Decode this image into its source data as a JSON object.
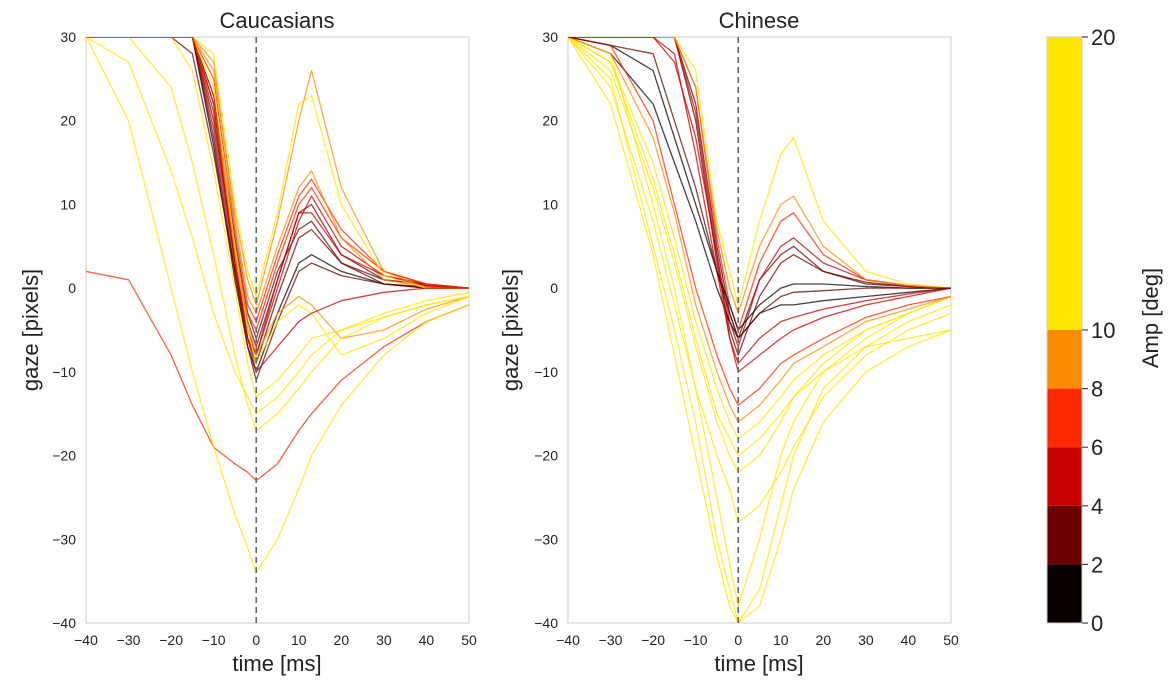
{
  "chart_data": [
    {
      "type": "line",
      "title": "Caucasians",
      "xlabel": "time [ms]",
      "ylabel": "gaze [pixels]",
      "xlim": [
        -40,
        50
      ],
      "ylim": [
        -40,
        30
      ],
      "xticks": [
        "−40",
        "−30",
        "−20",
        "−10",
        "0",
        "10",
        "20",
        "30",
        "40",
        "50"
      ],
      "yticks": [
        "30",
        "20",
        "10",
        "0",
        "−10",
        "−20",
        "−30",
        "−40"
      ],
      "grid": false,
      "vline_x": 0,
      "x": [
        -40,
        -30,
        -20,
        -15,
        -10,
        -5,
        -2,
        0,
        5,
        10,
        13,
        20,
        30,
        40,
        50
      ],
      "series": [
        {
          "amp": 2,
          "values": [
            30,
            30,
            30,
            30,
            23,
            6,
            -3,
            -6,
            2,
            7,
            8,
            3,
            0.5,
            0.2,
            0
          ]
        },
        {
          "amp": 3,
          "values": [
            30,
            30,
            30,
            30,
            20,
            4,
            -4,
            -7,
            1,
            9,
            10,
            4,
            1,
            0.3,
            0
          ]
        },
        {
          "amp": 4,
          "values": [
            30,
            30,
            30,
            30,
            21,
            3,
            -5,
            -8,
            0,
            8,
            11,
            5,
            1.5,
            0.5,
            0
          ]
        },
        {
          "amp": 2.5,
          "values": [
            30,
            30,
            30,
            30,
            18,
            2,
            -6,
            -9,
            -1,
            6,
            7,
            3,
            1,
            0.5,
            0
          ]
        },
        {
          "amp": 6,
          "values": [
            30,
            30,
            30,
            30,
            22,
            5,
            -3,
            -5,
            3,
            10,
            12,
            6,
            2,
            0.5,
            0
          ]
        },
        {
          "amp": 7,
          "values": [
            30,
            30,
            30,
            30,
            25,
            7,
            -2,
            -4,
            4,
            11,
            13,
            7,
            2,
            0.5,
            0
          ]
        },
        {
          "amp": 8.5,
          "values": [
            30,
            30,
            30,
            30,
            27,
            8,
            -1,
            -3,
            5,
            12,
            14,
            6,
            1,
            0.2,
            0
          ]
        },
        {
          "amp": 1,
          "values": [
            30,
            30,
            30,
            30,
            17,
            1,
            -7,
            -10,
            -3,
            3,
            4,
            2,
            0.5,
            0,
            0
          ]
        },
        {
          "amp": 5,
          "values": [
            30,
            30,
            30,
            30,
            19,
            3,
            -6,
            -8,
            1,
            9,
            9,
            4,
            1.5,
            0.3,
            0
          ]
        },
        {
          "amp": 3.5,
          "values": [
            30,
            30,
            30,
            28,
            16,
            2,
            -7,
            -11,
            -4,
            2,
            3,
            1.5,
            0.5,
            0,
            0
          ]
        },
        {
          "amp": 9,
          "values": [
            30,
            30,
            30,
            30,
            26,
            9,
            1,
            -2,
            8,
            20,
            26,
            12,
            2,
            0,
            0
          ]
        },
        {
          "amp": 12,
          "values": [
            30,
            30,
            30,
            30,
            28,
            10,
            2,
            -1,
            9,
            22,
            23,
            10,
            1.5,
            0,
            0
          ]
        },
        {
          "amp": 15,
          "values": [
            30,
            30,
            30,
            30,
            24,
            5,
            -5,
            -9,
            -4,
            -2,
            -3,
            -8,
            -6,
            -3,
            -1
          ]
        },
        {
          "amp": 9,
          "values": [
            30,
            30,
            30,
            30,
            22,
            4,
            -4,
            -8,
            -3,
            -1,
            -2,
            -6,
            -5,
            -2.5,
            -1
          ]
        },
        {
          "amp": 11,
          "values": [
            30,
            30,
            30,
            26,
            14,
            0,
            -9,
            -13,
            -11,
            -8,
            -6,
            -5,
            -3.5,
            -2,
            -1
          ]
        },
        {
          "amp": 6,
          "values": [
            2,
            1,
            -8,
            -14,
            -19,
            -21,
            -22,
            -23,
            -21,
            -17,
            -15,
            -11,
            -7,
            -4,
            -2
          ]
        },
        {
          "amp": 17,
          "values": [
            30,
            20,
            0,
            -10,
            -19,
            -27,
            -31,
            -34,
            -30,
            -24,
            -20,
            -14,
            -8,
            -4,
            -2
          ]
        },
        {
          "amp": 14,
          "values": [
            30,
            27,
            14,
            6,
            -3,
            -10,
            -13,
            -15,
            -13,
            -10,
            -8,
            -5,
            -3,
            -1.5,
            -0.5
          ]
        },
        {
          "amp": 18,
          "values": [
            30,
            30,
            24,
            15,
            4,
            -8,
            -14,
            -17,
            -15,
            -12,
            -10,
            -6,
            -3.5,
            -2,
            -1
          ]
        },
        {
          "amp": 5,
          "values": [
            30,
            30,
            30,
            30,
            22,
            3,
            -6,
            -10,
            -7,
            -4,
            -3,
            -1.5,
            -0.5,
            0,
            0
          ]
        }
      ]
    },
    {
      "type": "line",
      "title": "Chinese",
      "xlabel": "time [ms]",
      "ylabel": "gaze [pixels]",
      "xlim": [
        -40,
        50
      ],
      "ylim": [
        -40,
        30
      ],
      "xticks": [
        "−40",
        "−30",
        "−20",
        "−10",
        "0",
        "10",
        "20",
        "30",
        "40",
        "50"
      ],
      "yticks": [
        "30",
        "20",
        "10",
        "0",
        "−10",
        "−20",
        "−30",
        "−40"
      ],
      "grid": false,
      "vline_x": 0,
      "x": [
        -40,
        -30,
        -20,
        -15,
        -10,
        -5,
        -2,
        0,
        5,
        10,
        13,
        20,
        30,
        40,
        50
      ],
      "series": [
        {
          "amp": 2,
          "values": [
            30,
            30,
            30,
            30,
            22,
            5,
            -3,
            -6,
            1,
            4,
            5,
            2,
            0.5,
            0.2,
            0
          ]
        },
        {
          "amp": 3,
          "values": [
            30,
            30,
            30,
            30,
            20,
            3,
            -5,
            -8,
            -1,
            3,
            4,
            2,
            0.7,
            0.2,
            0
          ]
        },
        {
          "amp": 4,
          "values": [
            30,
            30,
            30,
            30,
            21,
            4,
            -4,
            -7,
            1,
            5,
            6,
            3,
            1,
            0.3,
            0
          ]
        },
        {
          "amp": 6,
          "values": [
            30,
            30,
            30,
            30,
            24,
            6,
            -2,
            -5,
            3,
            8,
            9,
            4,
            1,
            0.3,
            0
          ]
        },
        {
          "amp": 1,
          "values": [
            30,
            28,
            22,
            15,
            8,
            0,
            -4,
            -6,
            -3,
            -2,
            -2,
            -1.5,
            -1,
            -0.5,
            0
          ]
        },
        {
          "amp": 0.5,
          "values": [
            30,
            29,
            26,
            18,
            10,
            2,
            -2,
            -5,
            -2,
            0,
            0.5,
            0.5,
            0.2,
            0,
            0
          ]
        },
        {
          "amp": 12,
          "values": [
            30,
            30,
            30,
            30,
            26,
            8,
            2,
            -2,
            8,
            16,
            18,
            8,
            2,
            0.5,
            0
          ]
        },
        {
          "amp": 9,
          "values": [
            30,
            30,
            30,
            30,
            24,
            7,
            0,
            -3,
            5,
            10,
            11,
            5,
            1,
            0.3,
            0
          ]
        },
        {
          "amp": 15,
          "values": [
            30,
            28,
            10,
            0,
            -12,
            -25,
            -33,
            -38,
            -30,
            -20,
            -16,
            -10,
            -6,
            -3,
            -1
          ]
        },
        {
          "amp": 18,
          "values": [
            30,
            25,
            5,
            -5,
            -16,
            -30,
            -36,
            -40,
            -38,
            -30,
            -24,
            -16,
            -10,
            -7,
            -5
          ]
        },
        {
          "amp": 14,
          "values": [
            30,
            26,
            12,
            3,
            -7,
            -16,
            -20,
            -22,
            -20,
            -16,
            -13,
            -9,
            -5,
            -3,
            -1
          ]
        },
        {
          "amp": 10,
          "values": [
            30,
            27,
            15,
            6,
            -4,
            -12,
            -16,
            -18,
            -16,
            -13,
            -11,
            -8,
            -5,
            -3,
            -1
          ]
        },
        {
          "amp": 16,
          "values": [
            30,
            24,
            8,
            -2,
            -12,
            -20,
            -24,
            -28,
            -26,
            -22,
            -19,
            -13,
            -8,
            -5,
            -3
          ]
        },
        {
          "amp": 5,
          "values": [
            30,
            30,
            30,
            27,
            18,
            4,
            -6,
            -10,
            -8,
            -6,
            -5,
            -3.5,
            -2,
            -1,
            0
          ]
        },
        {
          "amp": 7,
          "values": [
            30,
            29,
            20,
            10,
            0,
            -8,
            -12,
            -14,
            -12,
            -9,
            -8,
            -6,
            -3.5,
            -2,
            -1
          ]
        },
        {
          "amp": 19,
          "values": [
            30,
            22,
            4,
            -8,
            -20,
            -32,
            -38,
            -40,
            -36,
            -26,
            -20,
            -12,
            -7,
            -4,
            -2
          ]
        },
        {
          "amp": 8.5,
          "values": [
            30,
            28,
            18,
            9,
            -2,
            -10,
            -14,
            -16,
            -14,
            -11,
            -9,
            -7,
            -4,
            -2.5,
            -1
          ]
        },
        {
          "amp": 4,
          "values": [
            30,
            30,
            30,
            28,
            16,
            2,
            -6,
            -9,
            -6,
            -4,
            -3.5,
            -2.5,
            -1.5,
            -0.7,
            0
          ]
        },
        {
          "amp": 13,
          "values": [
            30,
            27,
            13,
            4,
            -6,
            -15,
            -18,
            -20,
            -18,
            -15,
            -13,
            -10,
            -7,
            -6,
            -5
          ]
        },
        {
          "amp": 2.5,
          "values": [
            30,
            29,
            28,
            20,
            12,
            2,
            -3,
            -6,
            -3,
            -1,
            -0.5,
            -0.3,
            0,
            0,
            0
          ]
        }
      ]
    }
  ],
  "colorbar": {
    "label": "Amp [deg]",
    "ticks": [
      "0",
      "2",
      "4",
      "6",
      "8",
      "10",
      "20"
    ],
    "boundaries": [
      0,
      2,
      4,
      6,
      8,
      10,
      20
    ],
    "colors": [
      "#0a0000",
      "#6b0000",
      "#c80000",
      "#ff2a00",
      "#ff8c00",
      "#ffe600"
    ]
  }
}
